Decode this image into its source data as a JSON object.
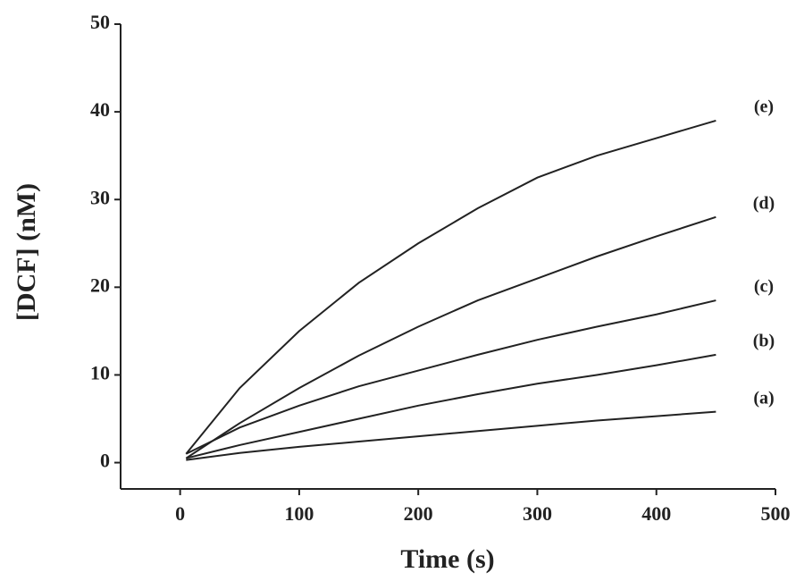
{
  "chart_data": {
    "type": "line",
    "x_label": "Time (s)",
    "y_label": "[DCF]  (nM)",
    "x": [
      5,
      50,
      100,
      150,
      200,
      250,
      300,
      350,
      400,
      450
    ],
    "series": [
      {
        "name": "(a)",
        "color": "#222222",
        "values": [
          0.3,
          1.1,
          1.8,
          2.4,
          3,
          3.6,
          4.2,
          4.8,
          5.3,
          5.8
        ]
      },
      {
        "name": "(b)",
        "color": "#222222",
        "values": [
          0.5,
          2,
          3.5,
          5,
          6.5,
          7.8,
          9,
          10,
          11.1,
          12.3
        ]
      },
      {
        "name": "(c)",
        "color": "#222222",
        "values": [
          1,
          4,
          6.5,
          8.7,
          10.5,
          12.3,
          14,
          15.5,
          16.9,
          18.5
        ]
      },
      {
        "name": "(d)",
        "color": "#222222",
        "values": [
          0.5,
          4.5,
          8.5,
          12.2,
          15.5,
          18.5,
          21,
          23.5,
          25.8,
          28
        ]
      },
      {
        "name": "(e)",
        "color": "#222222",
        "values": [
          1,
          8.5,
          15,
          20.5,
          25,
          29,
          32.5,
          35,
          37,
          39
        ]
      }
    ],
    "xlim": [
      -50,
      500
    ],
    "ylim": [
      -3,
      50
    ],
    "xticks": [
      0,
      100,
      200,
      300,
      400,
      500
    ],
    "yticks": [
      0,
      10,
      20,
      30,
      40,
      50
    ]
  }
}
